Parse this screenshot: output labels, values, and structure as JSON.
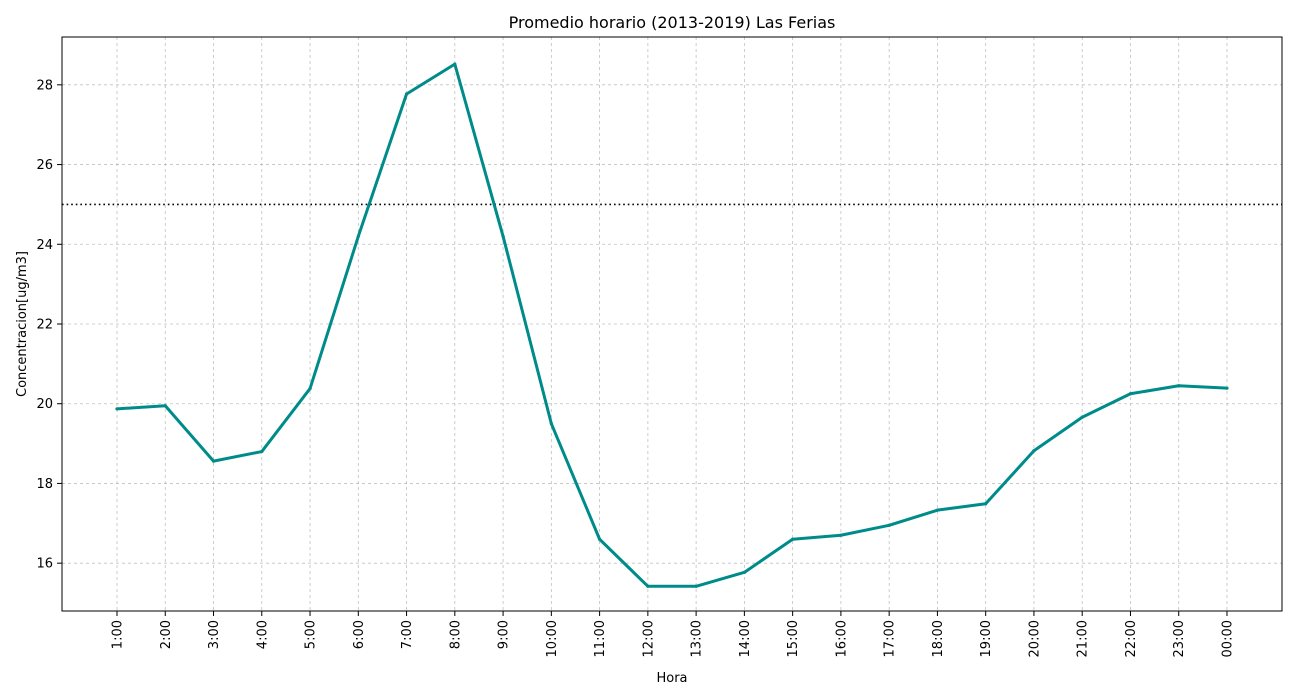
{
  "chart_data": {
    "type": "line",
    "title": "Promedio horario (2013-2019) Las Ferias",
    "xlabel": "Hora",
    "ylabel": "Concentracion[ug/m3]",
    "categories": [
      "1:00",
      "2:00",
      "3:00",
      "4:00",
      "5:00",
      "6:00",
      "7:00",
      "8:00",
      "9:00",
      "10:00",
      "11:00",
      "12:00",
      "13:00",
      "14:00",
      "15:00",
      "16:00",
      "17:00",
      "18:00",
      "19:00",
      "20:00",
      "21:00",
      "22:00",
      "23:00",
      "00:00"
    ],
    "series": [
      {
        "values": [
          19.87,
          19.95,
          18.56,
          18.8,
          20.38,
          24.2,
          27.77,
          28.52,
          24.2,
          19.5,
          16.6,
          15.42,
          15.42,
          15.77,
          16.6,
          16.7,
          16.95,
          17.33,
          17.49,
          18.82,
          19.66,
          20.25,
          20.45,
          20.39
        ],
        "color": "#008b8b"
      }
    ],
    "reference_line": {
      "value": 25,
      "style": "dotted",
      "color": "#000000"
    },
    "ylim": [
      14.8,
      29.2
    ],
    "yticks": [
      16,
      18,
      20,
      22,
      24,
      26,
      28
    ],
    "grid": true,
    "legend": false
  }
}
